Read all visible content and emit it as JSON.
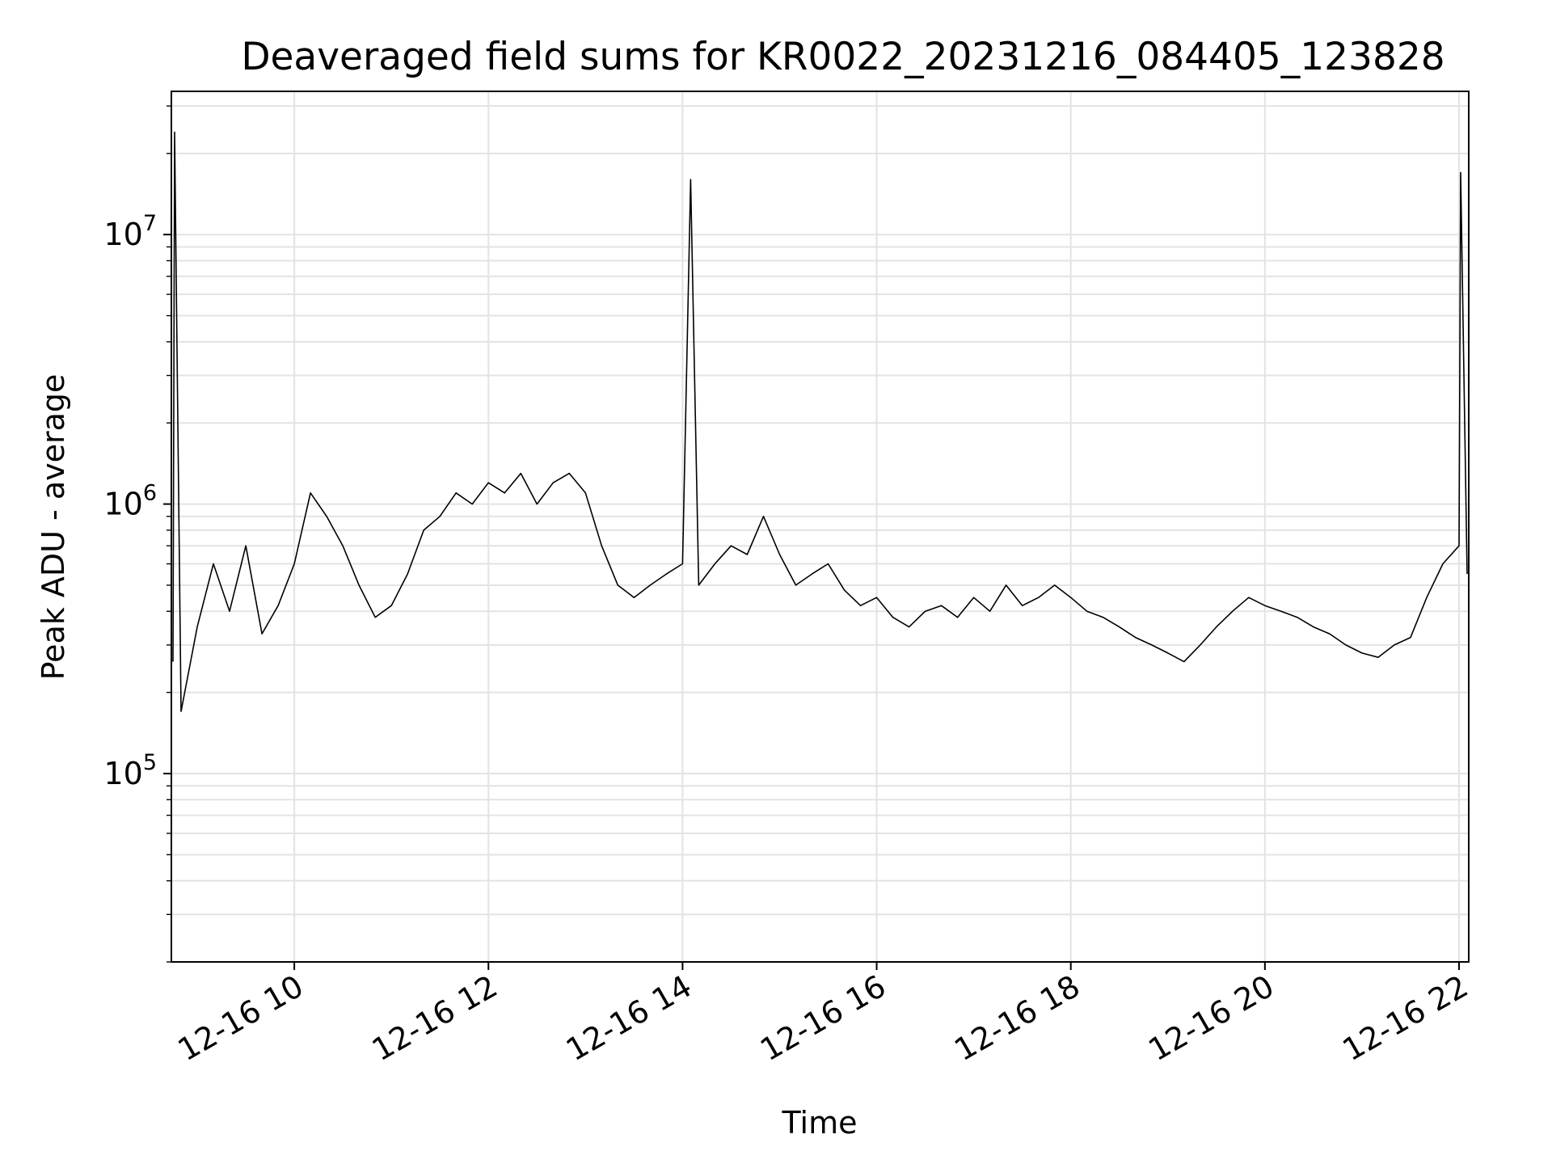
{
  "chart_data": {
    "type": "line",
    "title": "Deaveraged field sums for KR0022_20231216_084405_123828",
    "xlabel": "Time",
    "ylabel": "Peak ADU - average",
    "x_range": [
      "2023-12-16 08:44",
      "2023-12-16 22:06"
    ],
    "y_range": [
      20000,
      34000000
    ],
    "y_scale": "log",
    "grid": true,
    "line_color": "#000000",
    "grid_color": "#e3e3e3",
    "x_ticks": [
      {
        "label": "12-16 10",
        "value": "2023-12-16 10:00"
      },
      {
        "label": "12-16 12",
        "value": "2023-12-16 12:00"
      },
      {
        "label": "12-16 14",
        "value": "2023-12-16 14:00"
      },
      {
        "label": "12-16 16",
        "value": "2023-12-16 16:00"
      },
      {
        "label": "12-16 18",
        "value": "2023-12-16 18:00"
      },
      {
        "label": "12-16 20",
        "value": "2023-12-16 20:00"
      },
      {
        "label": "12-16 22",
        "value": "2023-12-16 22:00"
      }
    ],
    "y_ticks": [
      {
        "base": "10",
        "exp": "5",
        "value": 100000
      },
      {
        "base": "10",
        "exp": "6",
        "value": 1000000
      },
      {
        "base": "10",
        "exp": "7",
        "value": 10000000
      }
    ],
    "series": [
      {
        "points": [
          [
            "2023-12-16 08:45",
            260000
          ],
          [
            "2023-12-16 08:46",
            24000000
          ],
          [
            "2023-12-16 08:50",
            170000
          ],
          [
            "2023-12-16 09:00",
            350000
          ],
          [
            "2023-12-16 09:10",
            600000
          ],
          [
            "2023-12-16 09:20",
            400000
          ],
          [
            "2023-12-16 09:30",
            700000
          ],
          [
            "2023-12-16 09:40",
            330000
          ],
          [
            "2023-12-16 09:50",
            420000
          ],
          [
            "2023-12-16 10:00",
            600000
          ],
          [
            "2023-12-16 10:10",
            1100000
          ],
          [
            "2023-12-16 10:20",
            900000
          ],
          [
            "2023-12-16 10:30",
            700000
          ],
          [
            "2023-12-16 10:40",
            500000
          ],
          [
            "2023-12-16 10:50",
            380000
          ],
          [
            "2023-12-16 11:00",
            420000
          ],
          [
            "2023-12-16 11:10",
            550000
          ],
          [
            "2023-12-16 11:20",
            800000
          ],
          [
            "2023-12-16 11:30",
            900000
          ],
          [
            "2023-12-16 11:40",
            1100000
          ],
          [
            "2023-12-16 11:50",
            1000000
          ],
          [
            "2023-12-16 12:00",
            1200000
          ],
          [
            "2023-12-16 12:10",
            1100000
          ],
          [
            "2023-12-16 12:20",
            1300000
          ],
          [
            "2023-12-16 12:30",
            1000000
          ],
          [
            "2023-12-16 12:40",
            1200000
          ],
          [
            "2023-12-16 12:50",
            1300000
          ],
          [
            "2023-12-16 13:00",
            1100000
          ],
          [
            "2023-12-16 13:10",
            700000
          ],
          [
            "2023-12-16 13:20",
            500000
          ],
          [
            "2023-12-16 13:30",
            450000
          ],
          [
            "2023-12-16 13:40",
            500000
          ],
          [
            "2023-12-16 13:50",
            550000
          ],
          [
            "2023-12-16 14:00",
            600000
          ],
          [
            "2023-12-16 14:05",
            16000000
          ],
          [
            "2023-12-16 14:10",
            500000
          ],
          [
            "2023-12-16 14:20",
            600000
          ],
          [
            "2023-12-16 14:30",
            700000
          ],
          [
            "2023-12-16 14:40",
            650000
          ],
          [
            "2023-12-16 14:50",
            900000
          ],
          [
            "2023-12-16 15:00",
            650000
          ],
          [
            "2023-12-16 15:10",
            500000
          ],
          [
            "2023-12-16 15:20",
            550000
          ],
          [
            "2023-12-16 15:30",
            600000
          ],
          [
            "2023-12-16 15:40",
            480000
          ],
          [
            "2023-12-16 15:50",
            420000
          ],
          [
            "2023-12-16 16:00",
            450000
          ],
          [
            "2023-12-16 16:10",
            380000
          ],
          [
            "2023-12-16 16:20",
            350000
          ],
          [
            "2023-12-16 16:30",
            400000
          ],
          [
            "2023-12-16 16:40",
            420000
          ],
          [
            "2023-12-16 16:50",
            380000
          ],
          [
            "2023-12-16 17:00",
            450000
          ],
          [
            "2023-12-16 17:10",
            400000
          ],
          [
            "2023-12-16 17:20",
            500000
          ],
          [
            "2023-12-16 17:30",
            420000
          ],
          [
            "2023-12-16 17:40",
            450000
          ],
          [
            "2023-12-16 17:50",
            500000
          ],
          [
            "2023-12-16 18:00",
            450000
          ],
          [
            "2023-12-16 18:10",
            400000
          ],
          [
            "2023-12-16 18:20",
            380000
          ],
          [
            "2023-12-16 18:30",
            350000
          ],
          [
            "2023-12-16 18:40",
            320000
          ],
          [
            "2023-12-16 18:50",
            300000
          ],
          [
            "2023-12-16 19:00",
            280000
          ],
          [
            "2023-12-16 19:10",
            260000
          ],
          [
            "2023-12-16 19:20",
            300000
          ],
          [
            "2023-12-16 19:30",
            350000
          ],
          [
            "2023-12-16 19:40",
            400000
          ],
          [
            "2023-12-16 19:50",
            450000
          ],
          [
            "2023-12-16 20:00",
            420000
          ],
          [
            "2023-12-16 20:10",
            400000
          ],
          [
            "2023-12-16 20:20",
            380000
          ],
          [
            "2023-12-16 20:30",
            350000
          ],
          [
            "2023-12-16 20:40",
            330000
          ],
          [
            "2023-12-16 20:50",
            300000
          ],
          [
            "2023-12-16 21:00",
            280000
          ],
          [
            "2023-12-16 21:10",
            270000
          ],
          [
            "2023-12-16 21:20",
            300000
          ],
          [
            "2023-12-16 21:30",
            320000
          ],
          [
            "2023-12-16 21:40",
            450000
          ],
          [
            "2023-12-16 21:50",
            600000
          ],
          [
            "2023-12-16 22:00",
            700000
          ],
          [
            "2023-12-16 22:01",
            17000000
          ],
          [
            "2023-12-16 22:05",
            550000
          ]
        ]
      }
    ]
  }
}
